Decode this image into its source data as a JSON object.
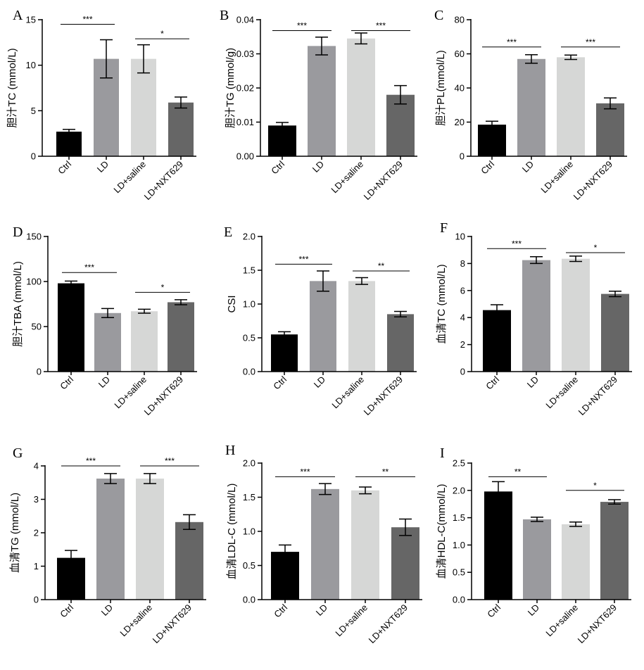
{
  "colors": [
    "#000000",
    "#9a9a9e",
    "#d6d7d6",
    "#666666"
  ],
  "chart_data": [
    {
      "panel": "A",
      "type": "bar",
      "categories": [
        "Ctrl",
        "LD",
        "LD+saline",
        "LD+NXT629"
      ],
      "values": [
        2.7,
        10.7,
        10.7,
        5.9
      ],
      "errors": [
        0.25,
        2.1,
        1.55,
        0.6
      ],
      "ylabel": "胆汁TC (mmol/L)",
      "ylim": [
        0,
        15
      ],
      "yticks": [
        0,
        5,
        10,
        15
      ],
      "ytick_labels": [
        "0",
        "5",
        "10",
        "15"
      ],
      "significance": [
        {
          "from": 0,
          "to": 1,
          "label": "***",
          "y": 14.5
        },
        {
          "from": 2,
          "to": 3,
          "label": "*",
          "y": 12.9
        }
      ]
    },
    {
      "panel": "B",
      "type": "bar",
      "categories": [
        "Ctrl",
        "LD",
        "LD+saline",
        "LD+NXT629"
      ],
      "values": [
        0.009,
        0.0323,
        0.0345,
        0.018
      ],
      "errors": [
        0.0009,
        0.0026,
        0.0016,
        0.0027
      ],
      "ylabel": "胆汁TG (mmol/g)",
      "ylim": [
        0,
        0.04
      ],
      "yticks": [
        0,
        0.01,
        0.02,
        0.03,
        0.04
      ],
      "ytick_labels": [
        "0.00",
        "0.01",
        "0.02",
        "0.03",
        "0.04"
      ],
      "significance": [
        {
          "from": 0,
          "to": 1,
          "label": "***",
          "y": 0.0368
        },
        {
          "from": 2,
          "to": 3,
          "label": "***",
          "y": 0.0368
        }
      ]
    },
    {
      "panel": "C",
      "type": "bar",
      "categories": [
        "Ctrl",
        "LD",
        "LD+saline",
        "LD+NXT629"
      ],
      "values": [
        18.5,
        57,
        58,
        31
      ],
      "errors": [
        2,
        2.5,
        1.3,
        3.2
      ],
      "ylabel": "胆汁PL(mmol/L)",
      "ylim": [
        0,
        80
      ],
      "yticks": [
        0,
        20,
        40,
        60,
        80
      ],
      "ytick_labels": [
        "0",
        "20",
        "40",
        "60",
        "80"
      ],
      "significance": [
        {
          "from": 0,
          "to": 1,
          "label": "***",
          "y": 64
        },
        {
          "from": 2,
          "to": 3,
          "label": "***",
          "y": 64
        }
      ]
    },
    {
      "panel": "D",
      "type": "bar",
      "categories": [
        "Ctrl",
        "LD",
        "LD+saline",
        "LD+NXT629"
      ],
      "values": [
        98,
        65,
        67,
        77
      ],
      "errors": [
        2.5,
        5,
        2.2,
        2.8
      ],
      "ylabel": "胆汁TBA (mmol/L)",
      "ylim": [
        0,
        150
      ],
      "yticks": [
        0,
        50,
        100,
        150
      ],
      "ytick_labels": [
        "0",
        "50",
        "100",
        "150"
      ],
      "significance": [
        {
          "from": 0,
          "to": 1,
          "label": "***",
          "y": 110
        },
        {
          "from": 2,
          "to": 3,
          "label": "*",
          "y": 88
        }
      ]
    },
    {
      "panel": "E",
      "type": "bar",
      "categories": [
        "Ctrl",
        "LD",
        "LD+saline",
        "LD+NXT629"
      ],
      "values": [
        0.55,
        1.34,
        1.34,
        0.85
      ],
      "errors": [
        0.04,
        0.15,
        0.05,
        0.04
      ],
      "ylabel": "CSI",
      "ylim": [
        0,
        2
      ],
      "yticks": [
        0,
        0.5,
        1,
        1.5,
        2
      ],
      "ytick_labels": [
        "0.0",
        "0.5",
        "1.0",
        "1.5",
        "2.0"
      ],
      "significance": [
        {
          "from": 0,
          "to": 1,
          "label": "***",
          "y": 1.59
        },
        {
          "from": 2,
          "to": 3,
          "label": "**",
          "y": 1.49
        }
      ]
    },
    {
      "panel": "F",
      "type": "bar",
      "categories": [
        "Ctrl",
        "LD",
        "LD+saline",
        "LD+NXT629"
      ],
      "values": [
        4.55,
        8.25,
        8.35,
        5.75
      ],
      "errors": [
        0.4,
        0.25,
        0.2,
        0.2
      ],
      "ylabel": "血清TC  (mmol/L)",
      "ylim": [
        0,
        10
      ],
      "yticks": [
        0,
        2,
        4,
        6,
        8,
        10
      ],
      "ytick_labels": [
        "0",
        "2",
        "4",
        "6",
        "8",
        "10"
      ],
      "significance": [
        {
          "from": 0,
          "to": 1,
          "label": "***",
          "y": 9.1
        },
        {
          "from": 2,
          "to": 3,
          "label": "*",
          "y": 8.8
        }
      ]
    },
    {
      "panel": "G",
      "type": "bar",
      "categories": [
        "Ctrl",
        "LD",
        "LD+saline",
        "LD+NXT629"
      ],
      "values": [
        1.25,
        3.62,
        3.62,
        2.32
      ],
      "errors": [
        0.22,
        0.15,
        0.15,
        0.22
      ],
      "ylabel": "血清TG (mmol/L)",
      "ylim": [
        0,
        4
      ],
      "yticks": [
        0,
        1,
        2,
        3,
        4
      ],
      "ytick_labels": [
        "0",
        "1",
        "2",
        "3",
        "4"
      ],
      "significance": [
        {
          "from": 0,
          "to": 1,
          "label": "***",
          "y": 4.0
        },
        {
          "from": 2,
          "to": 3,
          "label": "***",
          "y": 4.0
        }
      ]
    },
    {
      "panel": "H",
      "type": "bar",
      "categories": [
        "Ctrl",
        "LD",
        "LD+saline",
        "LD+NXT629"
      ],
      "values": [
        0.7,
        1.62,
        1.6,
        1.06
      ],
      "errors": [
        0.1,
        0.08,
        0.05,
        0.12
      ],
      "ylabel": "血清LDL-C (mmol/L)",
      "ylim": [
        0,
        2
      ],
      "yticks": [
        0,
        0.5,
        1,
        1.5,
        2
      ],
      "ytick_labels": [
        "0.0",
        "0.5",
        "1.0",
        "1.5",
        "2.0"
      ],
      "significance": [
        {
          "from": 0,
          "to": 1,
          "label": "***",
          "y": 1.8
        },
        {
          "from": 2,
          "to": 3,
          "label": "**",
          "y": 1.8
        }
      ]
    },
    {
      "panel": "I",
      "type": "bar",
      "categories": [
        "Ctrl",
        "LD",
        "LD+saline",
        "LD+NXT629"
      ],
      "values": [
        1.98,
        1.47,
        1.38,
        1.79
      ],
      "errors": [
        0.18,
        0.04,
        0.04,
        0.04
      ],
      "ylabel": "血清HDL-C(mmol/L)",
      "ylim": [
        0,
        2.5
      ],
      "yticks": [
        0,
        0.5,
        1,
        1.5,
        2,
        2.5
      ],
      "ytick_labels": [
        "0.0",
        "0.5",
        "1.0",
        "1.5",
        "2.0",
        "2.5"
      ],
      "significance": [
        {
          "from": 0,
          "to": 1,
          "label": "**",
          "y": 2.25
        },
        {
          "from": 2,
          "to": 3,
          "label": "*",
          "y": 2.0
        }
      ]
    }
  ]
}
